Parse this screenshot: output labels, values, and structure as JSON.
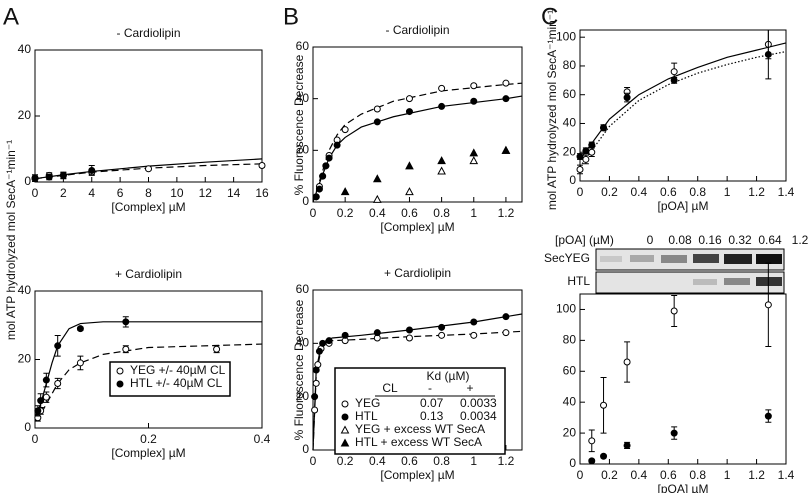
{
  "panel_labels": [
    "A",
    "B",
    "C"
  ],
  "chart_data": [
    {
      "type": "scatter",
      "title": "- Cardiolipin",
      "xlabel": "[Complex] µM",
      "ylabel": "mol ATP hydrolyzed mol SecA⁻¹min⁻¹",
      "xlim": [
        0,
        16
      ],
      "ylim": [
        0,
        40
      ],
      "xticks": [
        0,
        2,
        4,
        6,
        8,
        10,
        12,
        14,
        16
      ],
      "yticks": [
        0,
        20,
        40
      ],
      "series": [
        {
          "marker": "open-circle",
          "x": [
            0,
            1,
            2,
            4,
            8,
            16
          ],
          "values": [
            1.2,
            2,
            2,
            3,
            4,
            5
          ],
          "errors": [
            1,
            0.8,
            0.8,
            0.8,
            0.5,
            0.5
          ]
        },
        {
          "marker": "filled-circle",
          "x": [
            0,
            1,
            2,
            4
          ],
          "values": [
            1,
            1.5,
            2,
            3.5
          ],
          "errors": [
            0.8,
            0.8,
            1,
            1.5
          ]
        }
      ],
      "fits": [
        {
          "style": "dashed",
          "x": [
            0,
            2,
            4,
            8,
            12,
            16
          ],
          "values": [
            1,
            2,
            3,
            4.2,
            5,
            5.5
          ]
        },
        {
          "style": "solid",
          "x": [
            0,
            2,
            4,
            8,
            12,
            16
          ],
          "values": [
            1,
            2.2,
            3.2,
            4.8,
            6,
            7
          ]
        }
      ]
    },
    {
      "type": "scatter",
      "title": "+ Cardiolipin",
      "xlabel": "[Complex] µM",
      "ylabel": "mol ATP hydrolyzed mol SecA⁻¹min⁻¹",
      "xlim": [
        0,
        0.4
      ],
      "ylim": [
        0,
        40
      ],
      "xticks": [
        0,
        0.2,
        0.4
      ],
      "yticks": [
        0,
        20,
        40
      ],
      "series": [
        {
          "marker": "open-circle",
          "x": [
            0.005,
            0.01,
            0.02,
            0.04,
            0.08,
            0.16,
            0.32
          ],
          "values": [
            3,
            5,
            9,
            13,
            19,
            23,
            23
          ],
          "errors": [
            1,
            1,
            1.5,
            1.5,
            2,
            1,
            1
          ]
        },
        {
          "marker": "filled-circle",
          "x": [
            0.005,
            0.01,
            0.02,
            0.04,
            0.08,
            0.16
          ],
          "values": [
            5,
            8,
            14,
            24,
            29,
            31
          ],
          "errors": [
            1.5,
            2,
            2,
            3,
            0.5,
            1.5
          ]
        }
      ],
      "fits": [
        {
          "style": "dashed",
          "x": [
            0,
            0.01,
            0.02,
            0.03,
            0.04,
            0.06,
            0.08,
            0.12,
            0.2,
            0.4
          ],
          "values": [
            2,
            4,
            7,
            10,
            13,
            17,
            19,
            21.5,
            23.5,
            24.5
          ]
        },
        {
          "style": "solid",
          "x": [
            0,
            0.01,
            0.02,
            0.03,
            0.04,
            0.06,
            0.08,
            0.12,
            0.2,
            0.4
          ],
          "values": [
            3,
            7,
            13,
            19,
            24,
            29,
            30.5,
            31,
            31,
            31
          ]
        }
      ],
      "legend": {
        "rows": [
          {
            "marker": "open-circle",
            "cells": [
              "YEG +/- 40µM CL"
            ]
          },
          {
            "marker": "filled-circle",
            "cells": [
              "HTL +/- 40µM CL"
            ]
          }
        ]
      }
    },
    {
      "type": "scatter",
      "title": "- Cardiolipin",
      "xlabel": "[Complex] µM",
      "ylabel": "% Fluorescence Decrease",
      "xlim": [
        0,
        1.3
      ],
      "ylim": [
        0,
        60
      ],
      "xticks": [
        0,
        0.2,
        0.4,
        0.6,
        0.8,
        1,
        1.2
      ],
      "yticks": [
        0,
        20,
        40,
        60
      ],
      "series": [
        {
          "marker": "open-circle",
          "x": [
            0.02,
            0.04,
            0.06,
            0.08,
            0.1,
            0.15,
            0.2,
            0.4,
            0.6,
            0.8,
            1,
            1.2
          ],
          "values": [
            2,
            6,
            10,
            14,
            18,
            24,
            28,
            36,
            40,
            44,
            45,
            46
          ]
        },
        {
          "marker": "filled-circle",
          "x": [
            0.02,
            0.04,
            0.06,
            0.08,
            0.1,
            0.15,
            0.4,
            0.6,
            0.8,
            1,
            1.2
          ],
          "values": [
            2,
            5,
            10,
            14,
            17,
            22,
            31,
            35,
            37,
            39,
            40
          ]
        },
        {
          "marker": "open-triangle",
          "x": [
            0.4,
            0.6,
            0.8,
            1,
            1.2
          ],
          "values": [
            1,
            4,
            12,
            16,
            20
          ]
        },
        {
          "marker": "filled-triangle",
          "x": [
            0.2,
            0.4,
            0.6,
            0.8,
            1,
            1.2
          ],
          "values": [
            4,
            9,
            14,
            16,
            19,
            20
          ]
        }
      ],
      "fits": [
        {
          "style": "dashed",
          "x": [
            0,
            0.05,
            0.1,
            0.15,
            0.2,
            0.3,
            0.5,
            0.8,
            1.2,
            1.3
          ],
          "values": [
            0,
            10,
            20,
            26,
            30,
            34,
            39,
            43,
            45.5,
            46
          ]
        },
        {
          "style": "solid",
          "x": [
            0,
            0.05,
            0.1,
            0.15,
            0.2,
            0.3,
            0.5,
            0.8,
            1.2,
            1.3
          ],
          "values": [
            0,
            9,
            17,
            22,
            25,
            29,
            33,
            37,
            40,
            41
          ]
        }
      ]
    },
    {
      "type": "scatter",
      "title": "+ Cardiolipin",
      "xlabel": "[Complex] µM",
      "ylabel": "% Fluorescence Decrease",
      "xlim": [
        0,
        1.3
      ],
      "ylim": [
        0,
        60
      ],
      "xticks": [
        0,
        0.2,
        0.4,
        0.6,
        0.8,
        1,
        1.2
      ],
      "yticks": [
        0,
        20,
        40,
        60
      ],
      "series": [
        {
          "marker": "open-circle",
          "x": [
            0.01,
            0.02,
            0.03,
            0.05,
            0.1,
            0.2,
            0.4,
            0.6,
            0.8,
            1,
            1.2
          ],
          "values": [
            15,
            25,
            32,
            38,
            40,
            41,
            42,
            42,
            43,
            43,
            44
          ]
        },
        {
          "marker": "filled-circle",
          "x": [
            0.01,
            0.02,
            0.04,
            0.06,
            0.1,
            0.2,
            0.4,
            0.6,
            0.8,
            1,
            1.2
          ],
          "values": [
            20,
            30,
            37,
            40,
            41,
            43,
            44,
            45,
            46,
            48,
            50
          ]
        }
      ],
      "fits": [
        {
          "style": "dashed",
          "x": [
            0,
            0.02,
            0.05,
            0.08,
            0.12,
            0.3,
            0.6,
            1,
            1.3
          ],
          "values": [
            0,
            28,
            38,
            40,
            41,
            41.5,
            42.5,
            43.5,
            44.5
          ]
        },
        {
          "style": "solid",
          "x": [
            0,
            0.02,
            0.05,
            0.08,
            0.12,
            0.3,
            0.6,
            1,
            1.3
          ],
          "values": [
            0,
            30,
            39,
            41,
            42,
            43,
            45,
            48,
            51
          ]
        }
      ],
      "legend": {
        "header": {
          "title": "Kd (µM)",
          "columns": [
            "CL",
            "-",
            "+"
          ]
        },
        "rows": [
          {
            "marker": "open-circle",
            "cells": [
              "YEG",
              "0.07",
              "0.0033"
            ]
          },
          {
            "marker": "filled-circle",
            "cells": [
              "HTL",
              "0.13",
              "0.0034"
            ]
          },
          {
            "marker": "open-triangle",
            "cells": [
              "YEG + excess WT SecA"
            ]
          },
          {
            "marker": "filled-triangle",
            "cells": [
              "HTL + excess WT SecA"
            ]
          }
        ]
      }
    },
    {
      "type": "scatter",
      "xlabel": "[pOA] µM",
      "ylabel": "mol ATP hydrolyzed mol SecA⁻¹min⁻¹",
      "xlim": [
        0,
        1.4
      ],
      "ylim": [
        0,
        105
      ],
      "xticks": [
        0,
        0.2,
        0.4,
        0.6,
        0.8,
        1,
        1.2,
        1.4
      ],
      "yticks": [
        0,
        20,
        40,
        60,
        80,
        100
      ],
      "series": [
        {
          "marker": "open-circle",
          "x": [
            0,
            0.04,
            0.08,
            0.16,
            0.32,
            0.64,
            1.28
          ],
          "values": [
            8,
            15,
            20,
            37,
            62,
            76,
            95
          ],
          "errors": [
            3,
            3,
            3,
            2,
            3,
            6,
            10
          ]
        },
        {
          "marker": "filled-circle",
          "x": [
            0,
            0.04,
            0.08,
            0.16,
            0.32,
            0.64,
            1.28
          ],
          "values": [
            17,
            21,
            25,
            37,
            58,
            70,
            88
          ],
          "errors": [
            2,
            2,
            2,
            2,
            3,
            2,
            17
          ]
        }
      ],
      "fits": [
        {
          "style": "dotted",
          "x": [
            0,
            0.2,
            0.4,
            0.6,
            0.8,
            1,
            1.2,
            1.4
          ],
          "values": [
            10,
            38,
            56,
            67,
            75,
            81,
            86,
            90
          ]
        },
        {
          "style": "solid",
          "x": [
            0,
            0.2,
            0.4,
            0.6,
            0.8,
            1,
            1.2,
            1.4
          ],
          "values": [
            15,
            43,
            60,
            71,
            79,
            86,
            91,
            96
          ]
        }
      ]
    },
    {
      "type": "scatter",
      "xlabel": "[pOA] µM",
      "xlim": [
        0,
        1.4
      ],
      "ylim": [
        0,
        110
      ],
      "xticks": [
        0,
        0.2,
        0.4,
        0.6,
        0.8,
        1,
        1.2,
        1.4
      ],
      "yticks": [
        0,
        20,
        40,
        60,
        80,
        100
      ],
      "series": [
        {
          "marker": "open-circle",
          "x": [
            0.08,
            0.16,
            0.32,
            0.64,
            1.28
          ],
          "values": [
            15,
            38,
            66,
            99,
            103
          ],
          "errors": [
            7,
            18,
            13,
            10,
            27
          ]
        },
        {
          "marker": "filled-circle",
          "x": [
            0.08,
            0.16,
            0.32,
            0.64,
            1.28
          ],
          "values": [
            2,
            5,
            12,
            20,
            31
          ],
          "errors": [
            1,
            1,
            2,
            4,
            4
          ]
        }
      ]
    }
  ],
  "gel": {
    "conc_label": "[pOA] (µM)",
    "lanes": [
      "0",
      "0.08",
      "0.16",
      "0.32",
      "0.64",
      "1.2"
    ],
    "rows": [
      "SecYEG",
      "HTL"
    ]
  }
}
